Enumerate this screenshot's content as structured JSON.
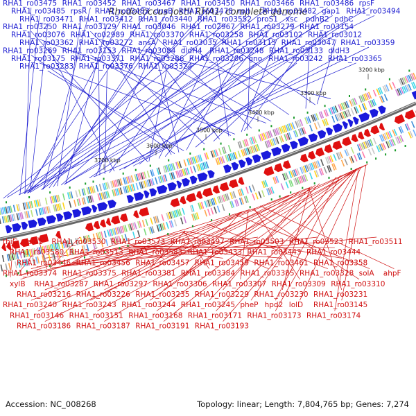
{
  "title": "Rhodococcus jostii RHA1, complete genome",
  "accession_text": "Accession: NC_008268",
  "summary_text": "Topology: linear; Length: 7,804,765 bp; Genes: 7,274",
  "colors": {
    "forward": "#1a1adc",
    "reverse": "#e01010",
    "backbone": "#666666",
    "rna": "#1a9a2a",
    "label_forward": "#1a1ad0",
    "label_reverse": "#d01010"
  },
  "scale_labels": [
    "3200 kbp",
    "3300 kbp",
    "3400 kbp",
    "3500 kbp",
    "3600 kbp",
    "3700 kbp"
  ],
  "forward_labels": [
    {
      "text": "RHA1_ro03475",
      "fx": 0.06
    },
    {
      "text": "RHA1_ro03452",
      "fx": 0.104
    },
    {
      "text": "RHA1_ro03467",
      "fx": 0.058
    },
    {
      "text": "RHA1_ro03450",
      "fx": 0.1
    },
    {
      "text": "RHA1_ro03466",
      "fx": 0.058
    },
    {
      "text": "RHA1_ro03486",
      "fx": 0.072
    },
    {
      "text": "rpsF",
      "fx": 0.155
    },
    {
      "text": "RHA1_ro03485",
      "fx": 0.048
    },
    {
      "text": "rpsR",
      "fx": 0.138
    },
    {
      "text": "RHA1_ro03483",
      "fx": 0.068
    },
    {
      "text": "dnaB",
      "fx": 0.128
    },
    {
      "text": "RHA1_ro03478",
      "fx": 0.068
    },
    {
      "text": "rplI",
      "fx": 0.147
    },
    {
      "text": "RHA1_ro03482",
      "fx": 0.065
    },
    {
      "text": "gap1",
      "fx": 0.154
    },
    {
      "text": "RHA1_ro03494",
      "fx": 0.045
    },
    {
      "text": "RHA1_ro03471",
      "fx": 0.072
    },
    {
      "text": "RHA1_ro03412",
      "fx": 0.158
    },
    {
      "text": "RHA1_ro03440",
      "fx": 0.118
    },
    {
      "text": "RHA1_ro03552",
      "fx": 0.008
    },
    {
      "text": "proS1",
      "fx": 0.1
    },
    {
      "text": "xsc",
      "fx": 0.017
    },
    {
      "text": "pdhB2",
      "fx": 0.215
    },
    {
      "text": "pdhC",
      "fx": 0.298
    },
    {
      "text": "RHA1_ro03250",
      "fx": 0.355
    },
    {
      "text": "RHA1_ro03129",
      "fx": 0.492
    },
    {
      "text": "RHA1_ro03046",
      "fx": 0.605
    },
    {
      "text": "RHA1_ro02967",
      "fx": 0.758
    },
    {
      "text": "RHA1_ro03279",
      "fx": 0.397
    },
    {
      "text": "RHA1_ro03154",
      "fx": 0.513
    },
    {
      "text": "RHA1_ro03076",
      "fx": 0.64
    },
    {
      "text": "RHA1_ro02989",
      "fx": 0.795
    },
    {
      "text": "RHA1_ro03370",
      "fx": 0.23
    },
    {
      "text": "RHA1_ro03258",
      "fx": 0.382
    },
    {
      "text": "RHA1_ro03102",
      "fx": 0.58
    },
    {
      "text": "RHA1_ro03012",
      "fx": 0.762
    },
    {
      "text": "RHA1_ro03362",
      "fx": 0.275
    },
    {
      "text": "RHA1_ro03272",
      "fx": 0.412
    },
    {
      "text": "ansA",
      "fx": 0.528
    },
    {
      "text": "RHA1_ro03035",
      "fx": 0.695
    },
    {
      "text": "RHA1_ro03115",
      "fx": 0.595
    },
    {
      "text": "RHA1_ro03047",
      "fx": 0.735
    },
    {
      "text": "RHA1_ro03359",
      "fx": 0.287
    },
    {
      "text": "RHA1_ro03269",
      "fx": 0.42
    },
    {
      "text": "RHA1_ro03153",
      "fx": 0.555
    },
    {
      "text": "RHA1_ro03084",
      "fx": 0.652
    },
    {
      "text": "dldH4",
      "fx": 0.263
    },
    {
      "text": "RHA1_ro03248",
      "fx": 0.448
    },
    {
      "text": "RHA1_ro03133",
      "fx": 0.587
    },
    {
      "text": "dldH3",
      "fx": 0.32
    },
    {
      "text": "RHA1_ro03175",
      "fx": 0.565
    },
    {
      "text": "RHA1_ro03371",
      "fx": 0.24
    },
    {
      "text": "RHA1_ro03286",
      "fx": 0.43
    },
    {
      "text": "RHA1_ro03206",
      "fx": 0.55
    },
    {
      "text": "gno",
      "fx": 0.335
    },
    {
      "text": "RHA1_ro03242",
      "fx": 0.47
    },
    {
      "text": "RHA1_ro03365",
      "fx": 0.225
    },
    {
      "text": "RHA1_ro03283",
      "fx": 0.442
    },
    {
      "text": "RHA1_ro03376",
      "fx": 0.252
    },
    {
      "text": "RHA1_ro03324",
      "fx": 0.358
    }
  ],
  "reverse_labels": [
    {
      "text": "thiG",
      "fx": 0.025
    },
    {
      "text": "ald1",
      "fx": 0.113
    },
    {
      "text": "RHA1_ro03530",
      "fx": 0.12
    },
    {
      "text": "RHA1_ro03573",
      "fx": 0.048
    },
    {
      "text": "RHA1_ro03497",
      "fx": 0.175
    },
    {
      "text": "RHA1_ro03503",
      "fx": 0.148
    },
    {
      "text": "RHA1_ro03523",
      "fx": 0.125
    },
    {
      "text": "RHA1_ro03511",
      "fx": 0.147
    },
    {
      "text": "RHA1_ro03580",
      "fx": 0.04
    },
    {
      "text": "RHA1_ro03513",
      "fx": 0.172
    },
    {
      "text": "RHA1_ro03583",
      "fx": 0.045
    },
    {
      "text": "RHA1_ro03433",
      "fx": 0.298
    },
    {
      "text": "RHA1_ro03443",
      "fx": 0.322
    },
    {
      "text": "RHA1_ro03444",
      "fx": 0.32
    },
    {
      "text": "RHA1_ro03446",
      "fx": 0.317
    },
    {
      "text": "RHA1_ro03456",
      "fx": 0.318
    },
    {
      "text": "RHA1_ro03457",
      "fx": 0.298
    },
    {
      "text": "RHA1_ro03459",
      "fx": 0.315
    },
    {
      "text": "RHA1_ro03461",
      "fx": 0.318
    },
    {
      "text": "RHA1_ro03358",
      "fx": 0.443
    },
    {
      "text": "RHA1_ro03374",
      "fx": 0.428
    },
    {
      "text": "RHA1_ro03375",
      "fx": 0.445
    },
    {
      "text": "RHA1_ro03381",
      "fx": 0.445
    },
    {
      "text": "RHA1_ro03384",
      "fx": 0.442
    },
    {
      "text": "RHA1_ro03385",
      "fx": 0.437
    },
    {
      "text": "RHA1_ro03328",
      "fx": 0.497
    },
    {
      "text": "solA",
      "fx": 0.565
    },
    {
      "text": "ahpF",
      "fx": 0.625
    },
    {
      "text": "xylB",
      "fx": 0.595
    },
    {
      "text": "RHA1_ro03287",
      "fx": 0.602
    },
    {
      "text": "RHA1_ro03297",
      "fx": 0.582
    },
    {
      "text": "RHA1_ro03306",
      "fx": 0.578
    },
    {
      "text": "RHA1_ro03307",
      "fx": 0.597
    },
    {
      "text": "RHA1_ro03309",
      "fx": 0.61
    },
    {
      "text": "RHA1_ro03310",
      "fx": 0.605
    },
    {
      "text": "RHA1_ro03216",
      "fx": 0.695
    },
    {
      "text": "RHA1_ro03226",
      "fx": 0.71
    },
    {
      "text": "RHA1_ro03235",
      "fx": 0.722
    },
    {
      "text": "RHA1_ro03229",
      "fx": 0.745
    },
    {
      "text": "RHA1_ro03230",
      "fx": 0.745
    },
    {
      "text": "RHA1_ro03231",
      "fx": 0.742
    },
    {
      "text": "RHA1_ro03240",
      "fx": 0.742
    },
    {
      "text": "RHA1_ro03243",
      "fx": 0.75
    },
    {
      "text": "RHA1_ro03244",
      "fx": 0.758
    },
    {
      "text": "RHA1_ro03245",
      "fx": 0.768
    },
    {
      "text": "pheP",
      "fx": 0.808
    },
    {
      "text": "hpd2",
      "fx": 0.818
    },
    {
      "text": "lolD",
      "fx": 0.868
    },
    {
      "text": "RHA1_ro03145",
      "fx": 0.88
    },
    {
      "text": "RHA1_ro03146",
      "fx": 0.88
    },
    {
      "text": "RHA1_ro03151",
      "fx": 0.885
    },
    {
      "text": "RHA1_ro03168",
      "fx": 0.85
    },
    {
      "text": "RHA1_ro03171",
      "fx": 0.86
    },
    {
      "text": "RHA1_ro03173",
      "fx": 0.858
    },
    {
      "text": "RHA1_ro03174",
      "fx": 0.862
    },
    {
      "text": "RHA1_ro03186",
      "fx": 0.865
    },
    {
      "text": "RHA1_ro03187",
      "fx": 0.865
    },
    {
      "text": "RHA1_ro03191",
      "fx": 0.858
    },
    {
      "text": "RHA1_ro03193",
      "fx": 0.855
    }
  ]
}
